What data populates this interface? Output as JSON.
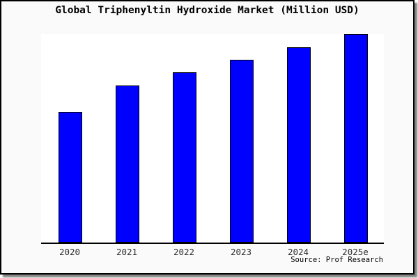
{
  "window": {
    "title": "Global Triphenyltin Hydroxide Market (Million USD)"
  },
  "source_label": "Source: Prof Research",
  "colors": {
    "bar_fill": "#0000FF",
    "bar_border": "#000000",
    "frame_background": "#FAFAFA",
    "plot_background": "#FFFFFF",
    "axis": "#000000",
    "title_text": "#000000"
  },
  "chart_data": {
    "type": "bar",
    "title": "Global Triphenyltin Hydroxide Market (Million USD)",
    "categories": [
      "2020",
      "2021",
      "2022",
      "2023",
      "2024",
      "2025e"
    ],
    "values": [
      62.8,
      75.2,
      81.6,
      87.7,
      93.7,
      100
    ],
    "xlabel": "",
    "ylabel": "",
    "ylim": [
      0,
      100.5
    ],
    "grid": false,
    "legend": false,
    "y_axis_ticks_visible": false,
    "annotation": "Source: Prof Research"
  }
}
